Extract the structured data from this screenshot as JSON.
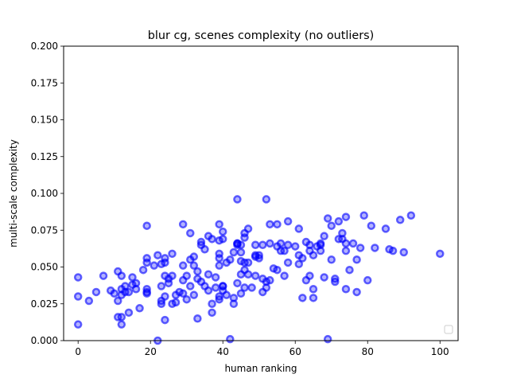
{
  "chart_data": {
    "type": "scatter",
    "title": "blur cg, scenes complexity (no outliers)",
    "xlabel": "human ranking",
    "ylabel": "multi-scale complexity",
    "xlim": [
      -4,
      105
    ],
    "ylim": [
      0.0,
      0.2
    ],
    "xticks": [
      0,
      20,
      40,
      60,
      80,
      100
    ],
    "xtick_labels": [
      "0",
      "20",
      "40",
      "60",
      "80",
      "100"
    ],
    "yticks": [
      0.0,
      0.025,
      0.05,
      0.075,
      0.1,
      0.125,
      0.15,
      0.175,
      0.2
    ],
    "ytick_labels": [
      "0.000",
      "0.025",
      "0.050",
      "0.075",
      "0.100",
      "0.125",
      "0.150",
      "0.175",
      "0.200"
    ],
    "grid": false,
    "legend": {
      "placement": "lower-right",
      "entries": []
    },
    "marker_color": "#0000ff",
    "series": [
      {
        "points": [
          [
            0,
            0.043
          ],
          [
            0,
            0.03
          ],
          [
            0,
            0.011
          ],
          [
            3,
            0.027
          ],
          [
            5,
            0.033
          ],
          [
            7,
            0.044
          ],
          [
            9,
            0.034
          ],
          [
            10,
            0.032
          ],
          [
            11,
            0.047
          ],
          [
            11,
            0.016
          ],
          [
            11,
            0.027
          ],
          [
            12,
            0.044
          ],
          [
            12,
            0.035
          ],
          [
            12,
            0.031
          ],
          [
            12,
            0.011
          ],
          [
            12,
            0.016
          ],
          [
            13,
            0.037
          ],
          [
            13,
            0.033
          ],
          [
            14,
            0.019
          ],
          [
            14,
            0.033
          ],
          [
            15,
            0.043
          ],
          [
            15,
            0.038
          ],
          [
            16,
            0.035
          ],
          [
            16,
            0.039
          ],
          [
            17,
            0.022
          ],
          [
            18,
            0.048
          ],
          [
            19,
            0.033
          ],
          [
            19,
            0.035
          ],
          [
            19,
            0.032
          ],
          [
            19,
            0.078
          ],
          [
            19,
            0.056
          ],
          [
            19,
            0.053
          ],
          [
            21,
            0.051
          ],
          [
            22,
            0.058
          ],
          [
            22,
            0.0
          ],
          [
            23,
            0.037
          ],
          [
            23,
            0.052
          ],
          [
            23,
            0.027
          ],
          [
            23,
            0.025
          ],
          [
            24,
            0.03
          ],
          [
            24,
            0.056
          ],
          [
            24,
            0.044
          ],
          [
            24,
            0.053
          ],
          [
            24,
            0.014
          ],
          [
            25,
            0.039
          ],
          [
            25,
            0.042
          ],
          [
            26,
            0.059
          ],
          [
            26,
            0.025
          ],
          [
            26,
            0.044
          ],
          [
            27,
            0.031
          ],
          [
            27,
            0.026
          ],
          [
            28,
            0.033
          ],
          [
            29,
            0.032
          ],
          [
            29,
            0.041
          ],
          [
            29,
            0.051
          ],
          [
            29,
            0.079
          ],
          [
            30,
            0.044
          ],
          [
            30,
            0.028
          ],
          [
            31,
            0.055
          ],
          [
            31,
            0.037
          ],
          [
            31,
            0.073
          ],
          [
            32,
            0.057
          ],
          [
            32,
            0.051
          ],
          [
            32,
            0.031
          ],
          [
            33,
            0.047
          ],
          [
            33,
            0.042
          ],
          [
            33,
            0.015
          ],
          [
            34,
            0.04
          ],
          [
            34,
            0.067
          ],
          [
            34,
            0.065
          ],
          [
            35,
            0.037
          ],
          [
            35,
            0.062
          ],
          [
            36,
            0.045
          ],
          [
            36,
            0.034
          ],
          [
            36,
            0.071
          ],
          [
            37,
            0.025
          ],
          [
            37,
            0.019
          ],
          [
            37,
            0.069
          ],
          [
            38,
            0.036
          ],
          [
            38,
            0.043
          ],
          [
            39,
            0.068
          ],
          [
            39,
            0.079
          ],
          [
            39,
            0.059
          ],
          [
            39,
            0.056
          ],
          [
            39,
            0.051
          ],
          [
            39,
            0.03
          ],
          [
            39,
            0.028
          ],
          [
            40,
            0.074
          ],
          [
            40,
            0.069
          ],
          [
            40,
            0.037
          ],
          [
            40,
            0.034
          ],
          [
            40,
            0.037
          ],
          [
            41,
            0.053
          ],
          [
            41,
            0.031
          ],
          [
            42,
            0.055
          ],
          [
            42,
            0.001
          ],
          [
            43,
            0.029
          ],
          [
            43,
            0.025
          ],
          [
            43,
            0.06
          ],
          [
            44,
            0.096
          ],
          [
            44,
            0.066
          ],
          [
            44,
            0.065
          ],
          [
            44,
            0.039
          ],
          [
            44,
            0.066
          ],
          [
            45,
            0.065
          ],
          [
            45,
            0.06
          ],
          [
            45,
            0.045
          ],
          [
            45,
            0.054
          ],
          [
            45,
            0.032
          ],
          [
            46,
            0.073
          ],
          [
            46,
            0.053
          ],
          [
            46,
            0.07
          ],
          [
            46,
            0.048
          ],
          [
            46,
            0.036
          ],
          [
            47,
            0.076
          ],
          [
            47,
            0.053
          ],
          [
            47,
            0.045
          ],
          [
            48,
            0.036
          ],
          [
            49,
            0.065
          ],
          [
            49,
            0.058
          ],
          [
            49,
            0.057
          ],
          [
            49,
            0.044
          ],
          [
            50,
            0.058
          ],
          [
            50,
            0.056
          ],
          [
            51,
            0.065
          ],
          [
            51,
            0.042
          ],
          [
            51,
            0.033
          ],
          [
            52,
            0.096
          ],
          [
            52,
            0.036
          ],
          [
            52,
            0.04
          ],
          [
            53,
            0.079
          ],
          [
            53,
            0.066
          ],
          [
            53,
            0.041
          ],
          [
            54,
            0.049
          ],
          [
            55,
            0.064
          ],
          [
            55,
            0.079
          ],
          [
            55,
            0.048
          ],
          [
            56,
            0.066
          ],
          [
            56,
            0.061
          ],
          [
            57,
            0.061
          ],
          [
            57,
            0.044
          ],
          [
            58,
            0.053
          ],
          [
            58,
            0.065
          ],
          [
            58,
            0.081
          ],
          [
            60,
            0.064
          ],
          [
            61,
            0.076
          ],
          [
            61,
            0.052
          ],
          [
            61,
            0.058
          ],
          [
            62,
            0.056
          ],
          [
            62,
            0.029
          ],
          [
            63,
            0.041
          ],
          [
            63,
            0.067
          ],
          [
            64,
            0.061
          ],
          [
            64,
            0.065
          ],
          [
            64,
            0.044
          ],
          [
            65,
            0.029
          ],
          [
            65,
            0.035
          ],
          [
            65,
            0.058
          ],
          [
            66,
            0.064
          ],
          [
            67,
            0.061
          ],
          [
            67,
            0.066
          ],
          [
            67,
            0.065
          ],
          [
            68,
            0.043
          ],
          [
            68,
            0.071
          ],
          [
            69,
            0.001
          ],
          [
            69,
            0.083
          ],
          [
            70,
            0.078
          ],
          [
            70,
            0.055
          ],
          [
            71,
            0.042
          ],
          [
            71,
            0.04
          ],
          [
            72,
            0.081
          ],
          [
            72,
            0.069
          ],
          [
            73,
            0.073
          ],
          [
            73,
            0.069
          ],
          [
            74,
            0.084
          ],
          [
            74,
            0.066
          ],
          [
            74,
            0.061
          ],
          [
            74,
            0.035
          ],
          [
            75,
            0.048
          ],
          [
            76,
            0.066
          ],
          [
            77,
            0.055
          ],
          [
            77,
            0.033
          ],
          [
            78,
            0.063
          ],
          [
            79,
            0.085
          ],
          [
            80,
            0.041
          ],
          [
            81,
            0.078
          ],
          [
            82,
            0.063
          ],
          [
            85,
            0.076
          ],
          [
            86,
            0.062
          ],
          [
            87,
            0.061
          ],
          [
            89,
            0.082
          ],
          [
            90,
            0.06
          ],
          [
            92,
            0.085
          ],
          [
            100,
            0.059
          ]
        ]
      }
    ]
  }
}
